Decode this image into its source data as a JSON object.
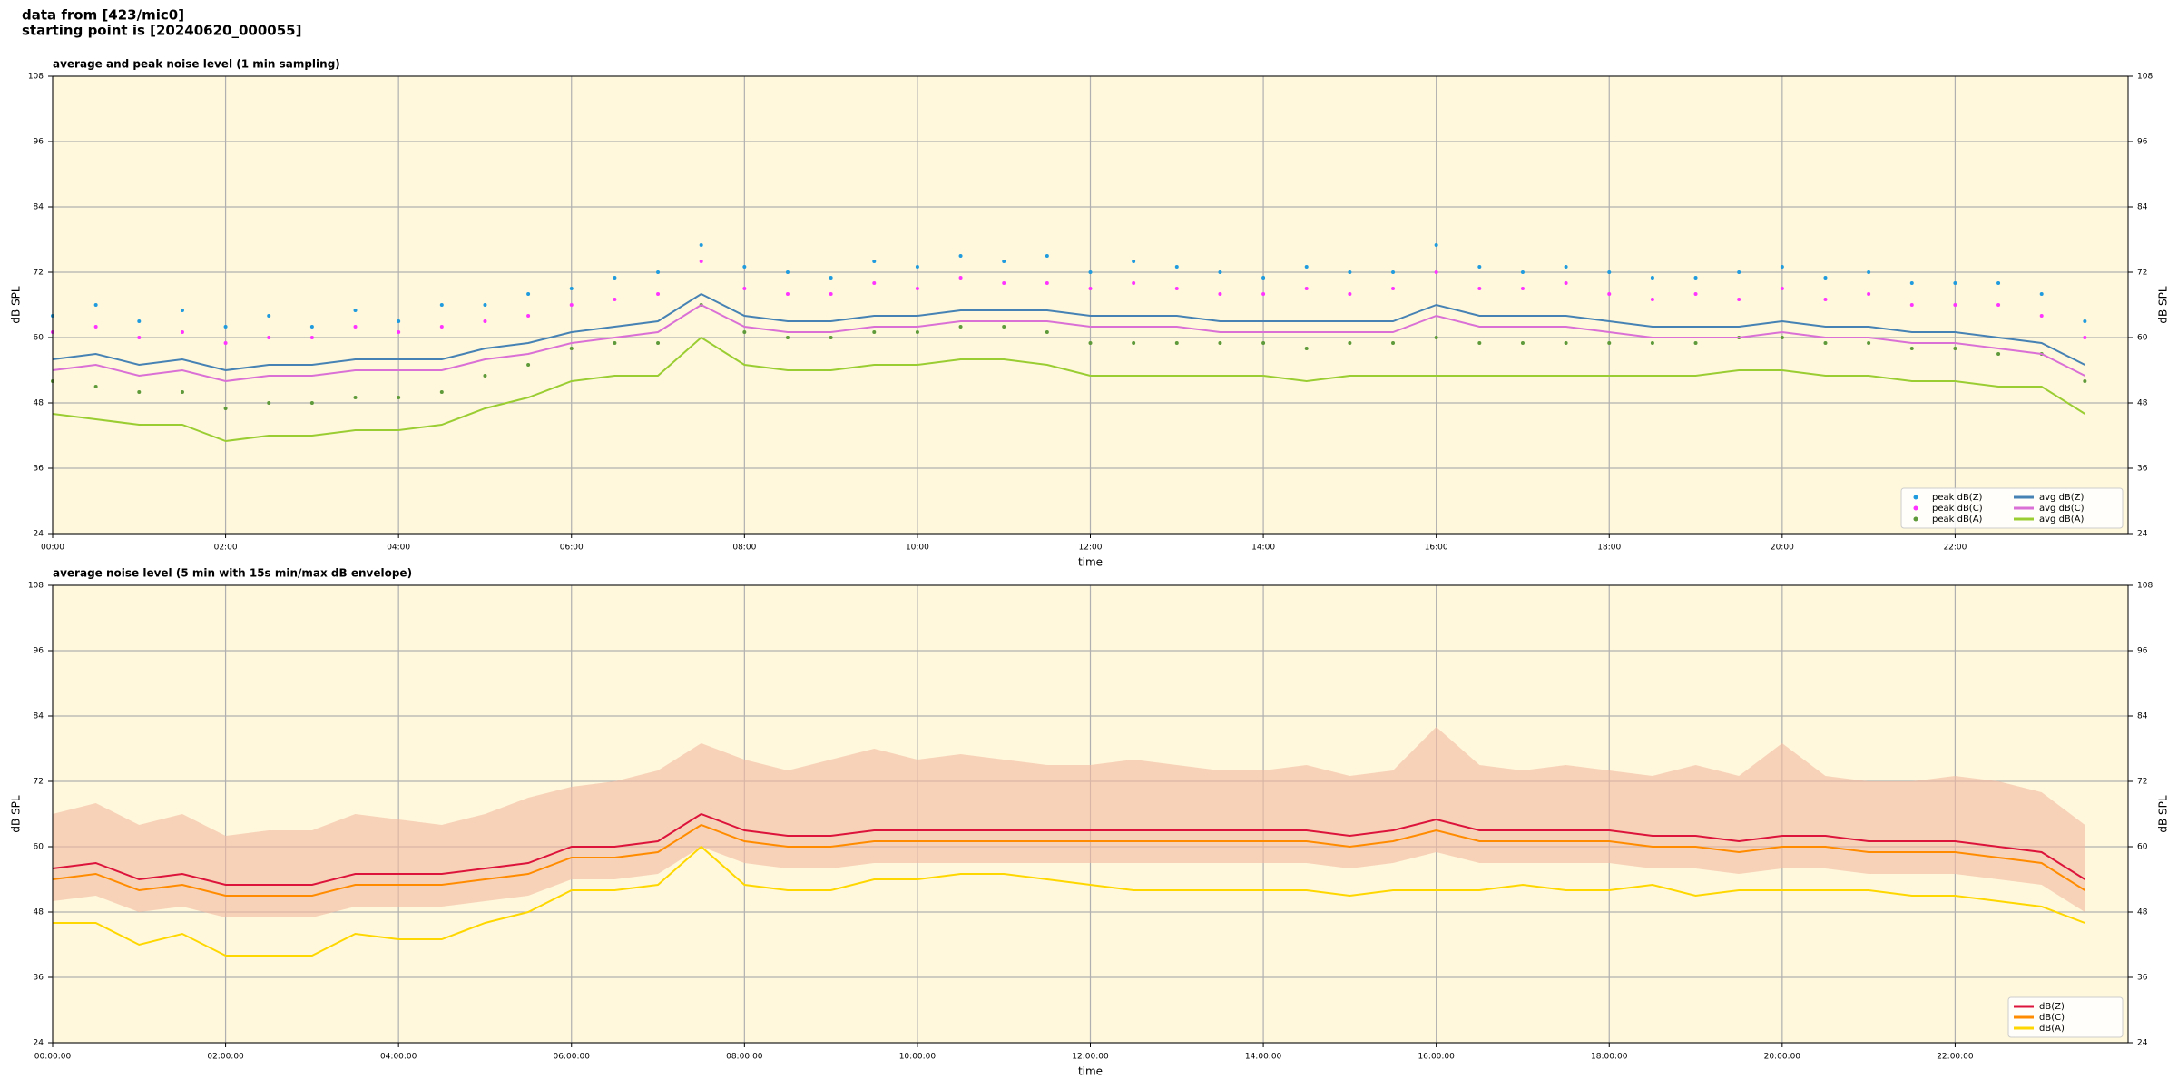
{
  "header": {
    "line1": "data from [423/mic0]",
    "line2": "starting point is [20240620_000055]"
  },
  "chart_data": [
    {
      "type": "line",
      "title": "average and peak noise level (1 min sampling)",
      "x_label": "time",
      "y_label": "dB SPL",
      "x": [
        0,
        0.5,
        1,
        1.5,
        2,
        2.5,
        3,
        3.5,
        4,
        4.5,
        5,
        5.5,
        6,
        6.5,
        7,
        7.5,
        8,
        8.5,
        9,
        9.5,
        10,
        10.5,
        11,
        11.5,
        12,
        12.5,
        13,
        13.5,
        14,
        14.5,
        15,
        15.5,
        16,
        16.5,
        17,
        17.5,
        18,
        18.5,
        19,
        19.5,
        20,
        20.5,
        21,
        21.5,
        22,
        22.5,
        23,
        23.5
      ],
      "xlim": [
        0,
        24
      ],
      "xticks": [
        {
          "value": 0,
          "label": "00:00"
        },
        {
          "value": 2,
          "label": "02:00"
        },
        {
          "value": 4,
          "label": "04:00"
        },
        {
          "value": 6,
          "label": "06:00"
        },
        {
          "value": 8,
          "label": "08:00"
        },
        {
          "value": 10,
          "label": "10:00"
        },
        {
          "value": 12,
          "label": "12:00"
        },
        {
          "value": 14,
          "label": "14:00"
        },
        {
          "value": 16,
          "label": "16:00"
        },
        {
          "value": 18,
          "label": "18:00"
        },
        {
          "value": 20,
          "label": "20:00"
        },
        {
          "value": 22,
          "label": "22:00"
        }
      ],
      "ylim": [
        24,
        108
      ],
      "yticks": [
        24,
        36,
        48,
        60,
        72,
        84,
        96,
        108
      ],
      "grid": true,
      "legend": "lower right",
      "background": "#fff8dc",
      "series": [
        {
          "name": "peak dB(Z)",
          "type": "scatter",
          "color": "#1f9bde",
          "values": [
            64,
            66,
            63,
            65,
            62,
            64,
            62,
            65,
            63,
            66,
            66,
            68,
            69,
            71,
            72,
            77,
            73,
            72,
            71,
            74,
            73,
            75,
            74,
            75,
            72,
            74,
            73,
            72,
            71,
            73,
            72,
            72,
            77,
            73,
            72,
            73,
            72,
            71,
            71,
            72,
            73,
            71,
            72,
            70,
            70,
            70,
            68,
            63
          ]
        },
        {
          "name": "peak dB(C)",
          "type": "scatter",
          "color": "#ff33ff",
          "values": [
            61,
            62,
            60,
            61,
            59,
            60,
            60,
            62,
            61,
            62,
            63,
            64,
            66,
            67,
            68,
            74,
            69,
            68,
            68,
            70,
            69,
            71,
            70,
            70,
            69,
            70,
            69,
            68,
            68,
            69,
            68,
            69,
            72,
            69,
            69,
            70,
            68,
            67,
            68,
            67,
            69,
            67,
            68,
            66,
            66,
            66,
            64,
            60
          ]
        },
        {
          "name": "peak dB(A)",
          "type": "scatter",
          "color": "#5e9a3a",
          "values": [
            52,
            51,
            50,
            50,
            47,
            48,
            48,
            49,
            49,
            50,
            53,
            55,
            58,
            59,
            59,
            66,
            61,
            60,
            60,
            61,
            61,
            62,
            62,
            61,
            59,
            59,
            59,
            59,
            59,
            58,
            59,
            59,
            60,
            59,
            59,
            59,
            59,
            59,
            59,
            60,
            60,
            59,
            59,
            58,
            58,
            57,
            57,
            52
          ]
        },
        {
          "name": "avg dB(Z)",
          "type": "line",
          "color": "#4682b4",
          "values": [
            56,
            57,
            55,
            56,
            54,
            55,
            55,
            56,
            56,
            56,
            58,
            59,
            61,
            62,
            63,
            68,
            64,
            63,
            63,
            64,
            64,
            65,
            65,
            65,
            64,
            64,
            64,
            63,
            63,
            63,
            63,
            63,
            66,
            64,
            64,
            64,
            63,
            62,
            62,
            62,
            63,
            62,
            62,
            61,
            61,
            60,
            59,
            55
          ]
        },
        {
          "name": "avg dB(C)",
          "type": "line",
          "color": "#da70d6",
          "values": [
            54,
            55,
            53,
            54,
            52,
            53,
            53,
            54,
            54,
            54,
            56,
            57,
            59,
            60,
            61,
            66,
            62,
            61,
            61,
            62,
            62,
            63,
            63,
            63,
            62,
            62,
            62,
            61,
            61,
            61,
            61,
            61,
            64,
            62,
            62,
            62,
            61,
            60,
            60,
            60,
            61,
            60,
            60,
            59,
            59,
            58,
            57,
            53
          ]
        },
        {
          "name": "avg dB(A)",
          "type": "line",
          "color": "#9acd32",
          "values": [
            46,
            45,
            44,
            44,
            41,
            42,
            42,
            43,
            43,
            44,
            47,
            49,
            52,
            53,
            53,
            60,
            55,
            54,
            54,
            55,
            55,
            56,
            56,
            55,
            53,
            53,
            53,
            53,
            53,
            52,
            53,
            53,
            53,
            53,
            53,
            53,
            53,
            53,
            53,
            54,
            54,
            53,
            53,
            52,
            52,
            51,
            51,
            46
          ]
        }
      ]
    },
    {
      "type": "line",
      "title": "average noise level (5 min with 15s min/max dB envelope)",
      "x_label": "time",
      "y_label": "dB SPL",
      "x": [
        0,
        0.5,
        1,
        1.5,
        2,
        2.5,
        3,
        3.5,
        4,
        4.5,
        5,
        5.5,
        6,
        6.5,
        7,
        7.5,
        8,
        8.5,
        9,
        9.5,
        10,
        10.5,
        11,
        11.5,
        12,
        12.5,
        13,
        13.5,
        14,
        14.5,
        15,
        15.5,
        16,
        16.5,
        17,
        17.5,
        18,
        18.5,
        19,
        19.5,
        20,
        20.5,
        21,
        21.5,
        22,
        22.5,
        23,
        23.5
      ],
      "xlim": [
        0,
        24
      ],
      "xticks": [
        {
          "value": 0,
          "label": "00:00:00"
        },
        {
          "value": 2,
          "label": "02:00:00"
        },
        {
          "value": 4,
          "label": "04:00:00"
        },
        {
          "value": 6,
          "label": "06:00:00"
        },
        {
          "value": 8,
          "label": "08:00:00"
        },
        {
          "value": 10,
          "label": "10:00:00"
        },
        {
          "value": 12,
          "label": "12:00:00"
        },
        {
          "value": 14,
          "label": "14:00:00"
        },
        {
          "value": 16,
          "label": "16:00:00"
        },
        {
          "value": 18,
          "label": "18:00:00"
        },
        {
          "value": 20,
          "label": "20:00:00"
        },
        {
          "value": 22,
          "label": "22:00:00"
        }
      ],
      "ylim": [
        24,
        108
      ],
      "yticks": [
        24,
        36,
        48,
        60,
        72,
        84,
        96,
        108
      ],
      "grid": true,
      "legend": "lower right",
      "background": "#fff8dc",
      "envelope": {
        "color": "#f4b9a0",
        "low": [
          50,
          51,
          48,
          49,
          47,
          47,
          47,
          49,
          49,
          49,
          50,
          51,
          54,
          54,
          55,
          60,
          57,
          56,
          56,
          57,
          57,
          57,
          57,
          57,
          57,
          57,
          57,
          57,
          57,
          57,
          56,
          57,
          59,
          57,
          57,
          57,
          57,
          56,
          56,
          55,
          56,
          56,
          55,
          55,
          55,
          54,
          53,
          48
        ],
        "high": [
          66,
          68,
          64,
          66,
          62,
          63,
          63,
          66,
          65,
          64,
          66,
          69,
          71,
          72,
          74,
          79,
          76,
          74,
          76,
          78,
          76,
          77,
          76,
          75,
          75,
          76,
          75,
          74,
          74,
          75,
          73,
          74,
          82,
          75,
          74,
          75,
          74,
          73,
          75,
          73,
          79,
          73,
          72,
          72,
          73,
          72,
          70,
          64
        ]
      },
      "series": [
        {
          "name": "dB(Z)",
          "type": "line",
          "color": "#dc143c",
          "values": [
            56,
            57,
            54,
            55,
            53,
            53,
            53,
            55,
            55,
            55,
            56,
            57,
            60,
            60,
            61,
            66,
            63,
            62,
            62,
            63,
            63,
            63,
            63,
            63,
            63,
            63,
            63,
            63,
            63,
            63,
            62,
            63,
            65,
            63,
            63,
            63,
            63,
            62,
            62,
            61,
            62,
            62,
            61,
            61,
            61,
            60,
            59,
            54
          ]
        },
        {
          "name": "dB(C)",
          "type": "line",
          "color": "#ff8c00",
          "values": [
            54,
            55,
            52,
            53,
            51,
            51,
            51,
            53,
            53,
            53,
            54,
            55,
            58,
            58,
            59,
            64,
            61,
            60,
            60,
            61,
            61,
            61,
            61,
            61,
            61,
            61,
            61,
            61,
            61,
            61,
            60,
            61,
            63,
            61,
            61,
            61,
            61,
            60,
            60,
            59,
            60,
            60,
            59,
            59,
            59,
            58,
            57,
            52
          ]
        },
        {
          "name": "dB(A)",
          "type": "line",
          "color": "#ffd700",
          "values": [
            46,
            46,
            42,
            44,
            40,
            40,
            40,
            44,
            43,
            43,
            46,
            48,
            52,
            52,
            53,
            60,
            53,
            52,
            52,
            54,
            54,
            55,
            55,
            54,
            53,
            52,
            52,
            52,
            52,
            52,
            51,
            52,
            52,
            52,
            53,
            52,
            52,
            53,
            51,
            52,
            52,
            52,
            52,
            51,
            51,
            50,
            49,
            46
          ]
        }
      ]
    }
  ]
}
